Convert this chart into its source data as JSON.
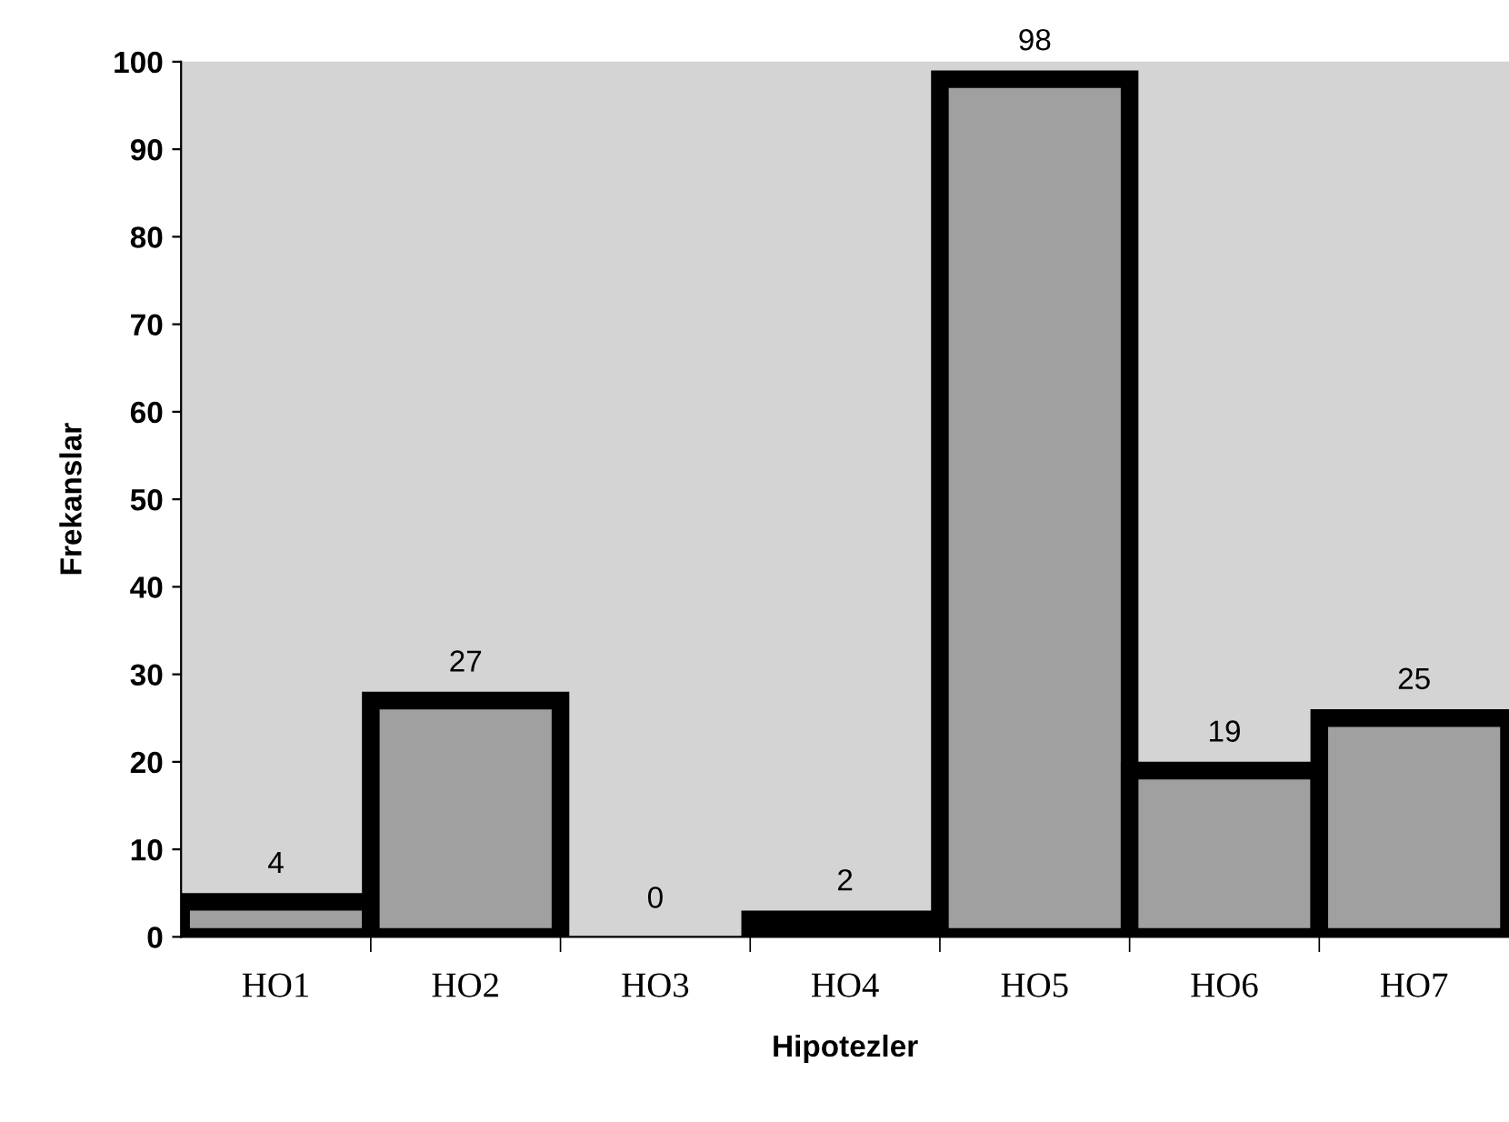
{
  "chart_data": {
    "type": "bar",
    "xlabel": "Hipotezler",
    "ylabel": "Frekanslar",
    "categories": [
      "HO1",
      "HO2",
      "HO3",
      "HO4",
      "HO5",
      "HO6",
      "HO7"
    ],
    "values": [
      4,
      27,
      0,
      2,
      98,
      19,
      25
    ],
    "color": "#a0a0a0",
    "ylim": [
      0,
      100
    ],
    "yticks": [
      0,
      10,
      20,
      30,
      40,
      50,
      60,
      70,
      80,
      90,
      100
    ],
    "data_labels": true,
    "grid": false,
    "legend": false
  }
}
